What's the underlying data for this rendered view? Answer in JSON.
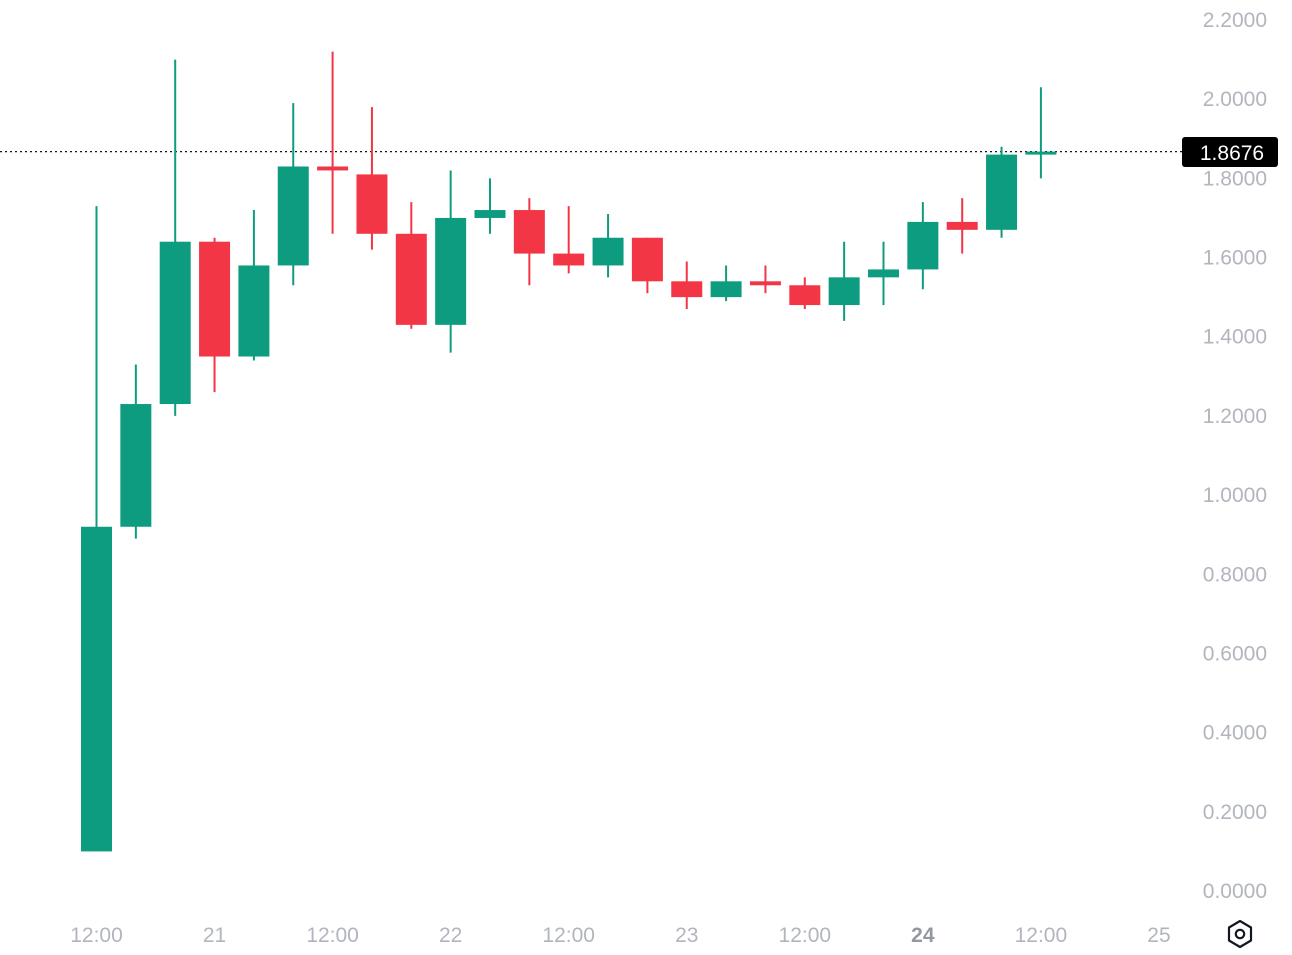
{
  "chart_data": {
    "type": "candlestick",
    "y_axis": {
      "range": [
        0,
        2.2
      ],
      "ticks": [
        "2.2000",
        "2.0000",
        "1.8000",
        "1.6000",
        "1.4000",
        "1.2000",
        "1.0000",
        "0.8000",
        "0.6000",
        "0.4000",
        "0.2000",
        "0.0000"
      ],
      "position": "right"
    },
    "x_axis": {
      "ticks": [
        {
          "label": "12:00",
          "index": 0,
          "bold": false
        },
        {
          "label": "21",
          "index": 3,
          "bold": false
        },
        {
          "label": "12:00",
          "index": 6,
          "bold": false
        },
        {
          "label": "22",
          "index": 9,
          "bold": false
        },
        {
          "label": "12:00",
          "index": 12,
          "bold": false
        },
        {
          "label": "23",
          "index": 15,
          "bold": false
        },
        {
          "label": "12:00",
          "index": 18,
          "bold": false
        },
        {
          "label": "24",
          "index": 21,
          "bold": true
        },
        {
          "label": "12:00",
          "index": 24,
          "bold": false
        },
        {
          "label": "25",
          "index": 27,
          "bold": false
        }
      ]
    },
    "candles": [
      {
        "o": 0.1,
        "h": 1.73,
        "l": 0.1,
        "c": 0.92
      },
      {
        "o": 0.92,
        "h": 1.33,
        "l": 0.89,
        "c": 1.23
      },
      {
        "o": 1.23,
        "h": 2.1,
        "l": 1.2,
        "c": 1.64
      },
      {
        "o": 1.64,
        "h": 1.65,
        "l": 1.26,
        "c": 1.35
      },
      {
        "o": 1.35,
        "h": 1.72,
        "l": 1.34,
        "c": 1.58
      },
      {
        "o": 1.58,
        "h": 1.99,
        "l": 1.53,
        "c": 1.83
      },
      {
        "o": 1.83,
        "h": 2.12,
        "l": 1.66,
        "c": 1.82
      },
      {
        "o": 1.81,
        "h": 1.98,
        "l": 1.62,
        "c": 1.66
      },
      {
        "o": 1.66,
        "h": 1.74,
        "l": 1.42,
        "c": 1.43
      },
      {
        "o": 1.43,
        "h": 1.82,
        "l": 1.36,
        "c": 1.7
      },
      {
        "o": 1.7,
        "h": 1.8,
        "l": 1.66,
        "c": 1.72
      },
      {
        "o": 1.72,
        "h": 1.75,
        "l": 1.53,
        "c": 1.61
      },
      {
        "o": 1.61,
        "h": 1.73,
        "l": 1.56,
        "c": 1.58
      },
      {
        "o": 1.58,
        "h": 1.71,
        "l": 1.55,
        "c": 1.65
      },
      {
        "o": 1.65,
        "h": 1.65,
        "l": 1.51,
        "c": 1.54
      },
      {
        "o": 1.54,
        "h": 1.59,
        "l": 1.47,
        "c": 1.5
      },
      {
        "o": 1.5,
        "h": 1.58,
        "l": 1.49,
        "c": 1.54
      },
      {
        "o": 1.54,
        "h": 1.58,
        "l": 1.51,
        "c": 1.53
      },
      {
        "o": 1.53,
        "h": 1.55,
        "l": 1.47,
        "c": 1.48
      },
      {
        "o": 1.48,
        "h": 1.64,
        "l": 1.44,
        "c": 1.55
      },
      {
        "o": 1.55,
        "h": 1.64,
        "l": 1.48,
        "c": 1.57
      },
      {
        "o": 1.57,
        "h": 1.74,
        "l": 1.52,
        "c": 1.69
      },
      {
        "o": 1.69,
        "h": 1.75,
        "l": 1.61,
        "c": 1.67
      },
      {
        "o": 1.67,
        "h": 1.88,
        "l": 1.65,
        "c": 1.86
      },
      {
        "o": 1.865,
        "h": 2.03,
        "l": 1.8,
        "c": 1.8676
      }
    ],
    "last_price": "1.8676",
    "up_color": "#0e9c80",
    "down_color": "#f23645",
    "grid": false,
    "legend": "none"
  },
  "toolbar": {
    "settings_icon": "settings-gear-icon"
  }
}
